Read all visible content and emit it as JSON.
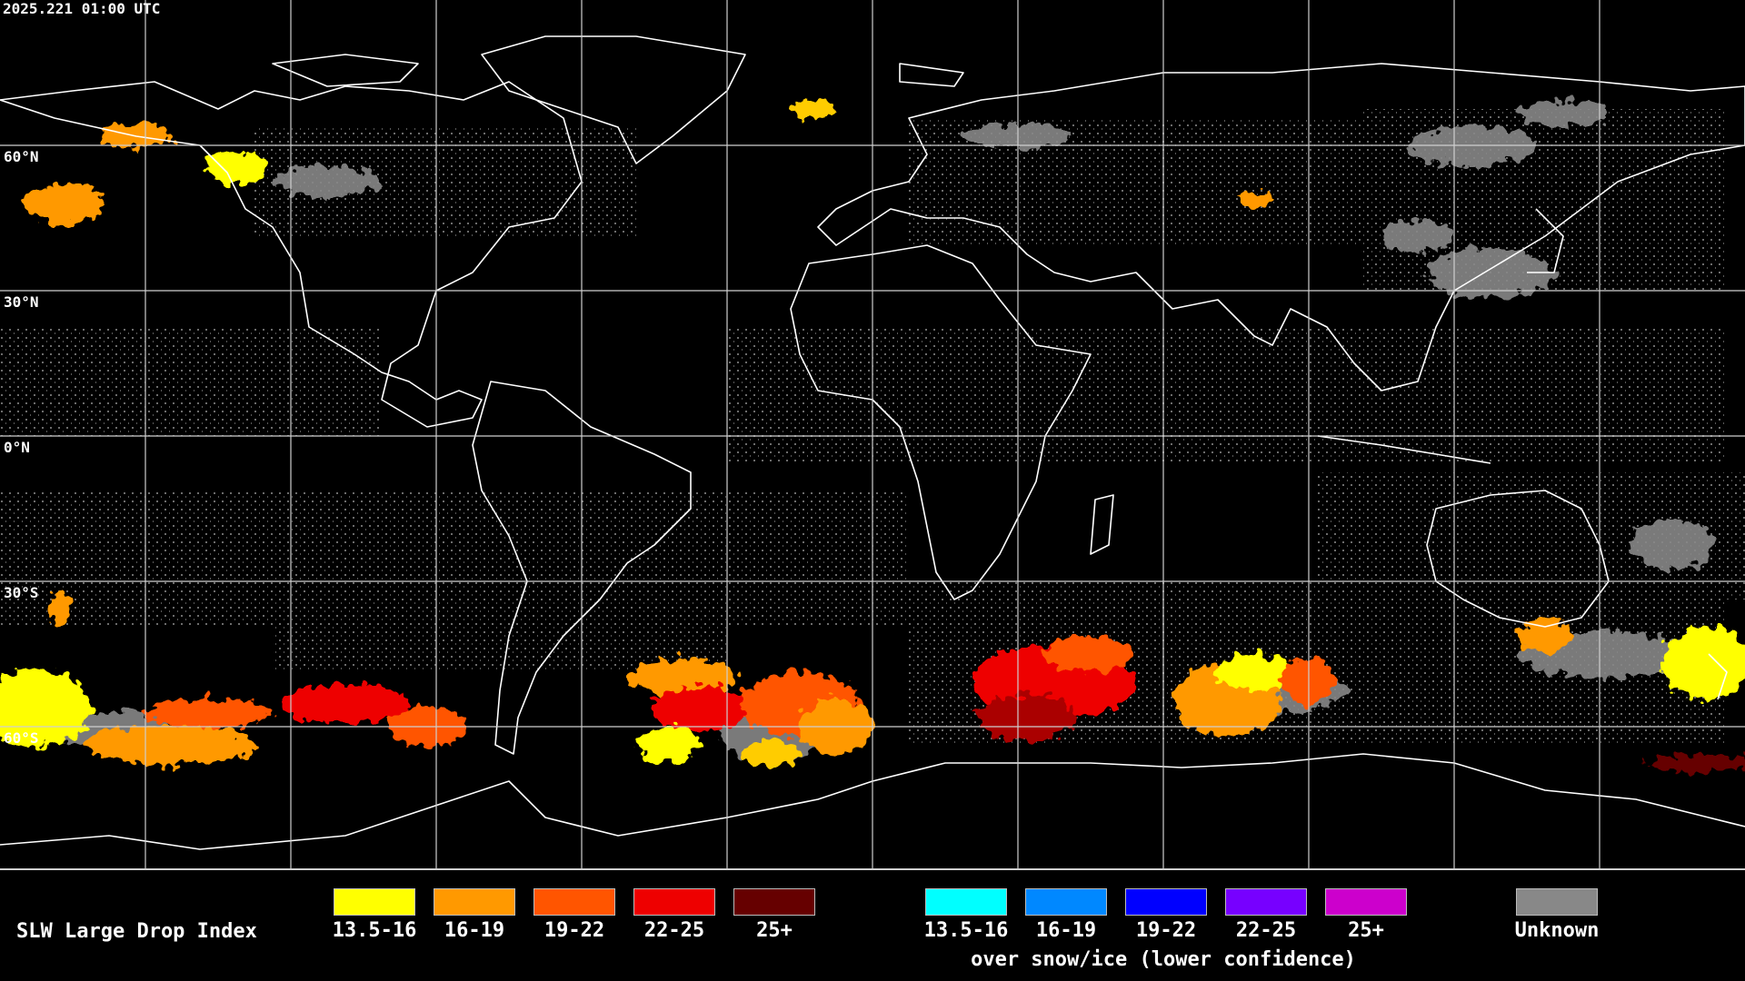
{
  "timestamp": "2025.221 01:00 UTC",
  "lat_labels": [
    "60°N",
    "30°N",
    "0°N",
    "30°S",
    "60°S"
  ],
  "legend": {
    "title": "SLW Large Drop Index",
    "categories": [
      {
        "label": "13.5-16",
        "color": "#ffff00"
      },
      {
        "label": "16-19",
        "color": "#ff9900"
      },
      {
        "label": "19-22",
        "color": "#ff5500"
      },
      {
        "label": "22-25",
        "color": "#ee0000"
      },
      {
        "label": "25+",
        "color": "#660000"
      }
    ],
    "snow_categories": [
      {
        "label": "13.5-16",
        "color": "#00ffff"
      },
      {
        "label": "16-19",
        "color": "#0088ff"
      },
      {
        "label": "19-22",
        "color": "#0000ff"
      },
      {
        "label": "22-25",
        "color": "#7700ff"
      },
      {
        "label": "25+",
        "color": "#cc00cc"
      }
    ],
    "snow_note": "over snow/ice (lower confidence)",
    "unknown": {
      "label": "Unknown",
      "color": "#888888"
    }
  }
}
